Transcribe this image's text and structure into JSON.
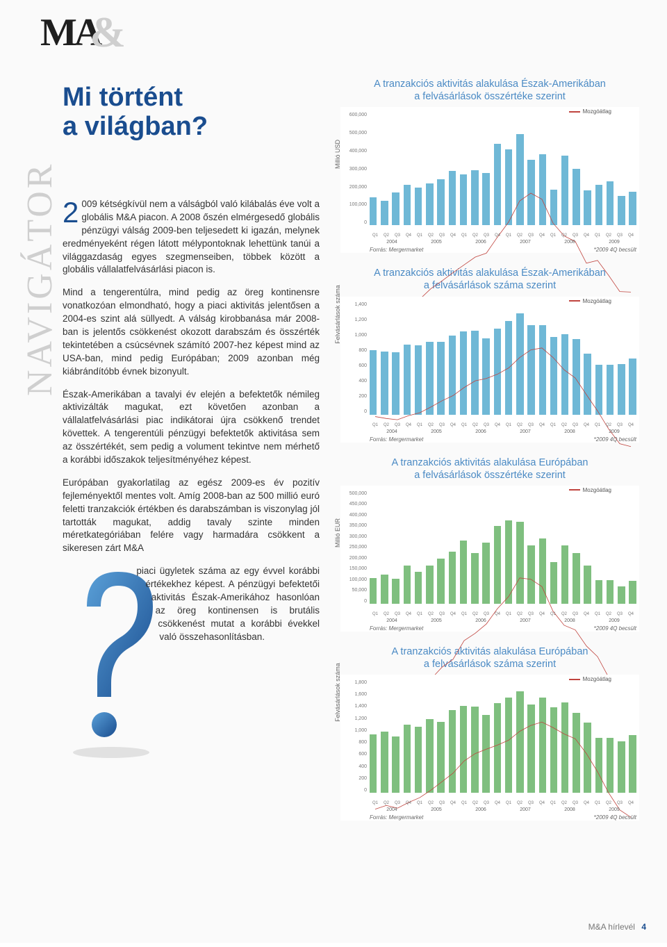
{
  "sidebar": {
    "vertical_text": "NAVIGÁTOR",
    "logo": "MA",
    "logo_amp": "&"
  },
  "title_line1": "Mi történt",
  "title_line2": "a világban?",
  "article": {
    "dropcap": "2",
    "p1": "009 kétségkívül nem a válságból való kilábalás éve volt a globális M&A piacon. A 2008 őszén elmérgesedő globális pénzügyi válság 2009-ben teljesedett ki igazán, melynek eredményeként régen látott mélypontoknak lehettünk tanúi a világgazdaság egyes szegmenseiben, többek között a globális vállalatfelvásárlási piacon is.",
    "p2": "Mind a tengerentúlra, mind pedig az öreg kontinensre vonatkozóan elmondható, hogy a piaci aktivitás jelentősen a 2004-es szint alá süllyedt. A válság kirobbanása már 2008-ban is jelentős csökkenést okozott darabszám és összérték tekintetében a csúcsévnek számító 2007-hez képest mind az USA-ban, mind pedig Európában; 2009 azonban még kiábrándítóbb évnek bizonyult.",
    "p3": "Észak-Amerikában a tavalyi év elején a befektetők némileg aktivizálták magukat, ezt követően azonban a vállalatfelvásárlási piac indikátorai újra csökkenő trendet követtek. A tengerentúli pénzügyi befektetők aktivitása sem az összértékét, sem pedig a volument tekintve nem mérhető a korábbi időszakok teljesítményéhez képest.",
    "p4a": "Európában gyakorlatilag az egész 2009-es év pozitív fejleményektől mentes volt. Amíg 2008-ban az 500 millió euró feletti tranzakciók értékben és darabszámban is viszonylag jól tartották magukat, addig tavaly szinte minden méretkategóriában felére vagy harmadára csökkent a sikeresen zárt M&A",
    "p4b": "piaci ügyletek száma az egy évvel korábbi értékekhez képest. A pénzügyi befektetői aktivitás Észak-Amerikához hasonlóan az öreg kontinensen is brutális csökkenést mutat a korábbi évekkel való összehasonlításban."
  },
  "legend_label": "Mozgóátlag",
  "source_label": "Forrás: Mergermarket",
  "estimate_label": "*2009 4Q becsült",
  "years": [
    "2004",
    "2005",
    "2006",
    "2007",
    "2008",
    "2009"
  ],
  "quarters": [
    "Q1",
    "Q2",
    "Q3",
    "Q4"
  ],
  "charts": [
    {
      "title_l1": "A tranzakciós aktivitás alakulása Észak-Amerikában",
      "title_l2": "a felvásárlások összértéke szerint",
      "yaxis": "Millió USD",
      "ymax": 600000,
      "ytick_step": 100000,
      "yticks": [
        "0",
        "100,000",
        "200,000",
        "300,000",
        "400,000",
        "500,000",
        "600,000"
      ],
      "bar_color": "#6fb8d6",
      "line_color": "#c0443e",
      "values": [
        150000,
        130000,
        175000,
        215000,
        200000,
        225000,
        245000,
        290000,
        270000,
        295000,
        280000,
        435000,
        405000,
        485000,
        350000,
        380000,
        190000,
        370000,
        300000,
        185000,
        215000,
        235000,
        155000,
        180000
      ]
    },
    {
      "title_l1": "A tranzakciós aktivitás alakulása Észak-Amerikában",
      "title_l2": "a felvásárlások száma szerint",
      "yaxis": "Felvásárlások száma",
      "ymax": 1400,
      "ytick_step": 200,
      "yticks": [
        "0",
        "200",
        "400",
        "600",
        "800",
        "1,000",
        "1,200",
        "1,400"
      ],
      "bar_color": "#6fb8d6",
      "line_color": "#c0443e",
      "values": [
        800,
        780,
        770,
        870,
        860,
        900,
        900,
        980,
        1030,
        1040,
        950,
        1070,
        1160,
        1260,
        1110,
        1110,
        960,
        1000,
        940,
        760,
        620,
        620,
        630,
        700
      ]
    },
    {
      "title_l1": "A tranzakciós aktivitás alakulása Európában",
      "title_l2": "a felvásárlások összértéke szerint",
      "yaxis": "Millió EUR",
      "ymax": 500000,
      "ytick_step": 50000,
      "yticks": [
        "0",
        "50,000",
        "100,000",
        "150,000",
        "200,000",
        "250,000",
        "300,000",
        "350,000",
        "400,000",
        "450,000",
        "500,000"
      ],
      "bar_color": "#7fbf7f",
      "line_color": "#c0443e",
      "values": [
        115000,
        130000,
        110000,
        170000,
        140000,
        170000,
        200000,
        230000,
        280000,
        225000,
        270000,
        345000,
        370000,
        365000,
        260000,
        290000,
        185000,
        260000,
        225000,
        170000,
        105000,
        105000,
        75000,
        100000
      ]
    },
    {
      "title_l1": "A tranzakciós aktivitás alakulása Európában",
      "title_l2": "a felvásárlások száma szerint",
      "yaxis": "Felvásárlások száma",
      "ymax": 1800,
      "ytick_step": 200,
      "yticks": [
        "0",
        "200",
        "400",
        "600",
        "800",
        "1,000",
        "1,200",
        "1,400",
        "1,600",
        "1,800"
      ],
      "bar_color": "#7fbf7f",
      "line_color": "#c0443e",
      "values": [
        930,
        980,
        900,
        1090,
        1060,
        1180,
        1130,
        1320,
        1390,
        1380,
        1250,
        1430,
        1520,
        1620,
        1410,
        1520,
        1370,
        1450,
        1280,
        1120,
        880,
        880,
        820,
        920
      ]
    }
  ],
  "footer": {
    "label": "M&A hírlevél",
    "page": "4"
  },
  "colors": {
    "title": "#1a4d8f",
    "chart_title": "#4a8ac4",
    "bar_na": "#6fb8d6",
    "bar_eu": "#7fbf7f",
    "ma_line": "#c0443e",
    "vert_text": "#cfcfcf"
  }
}
